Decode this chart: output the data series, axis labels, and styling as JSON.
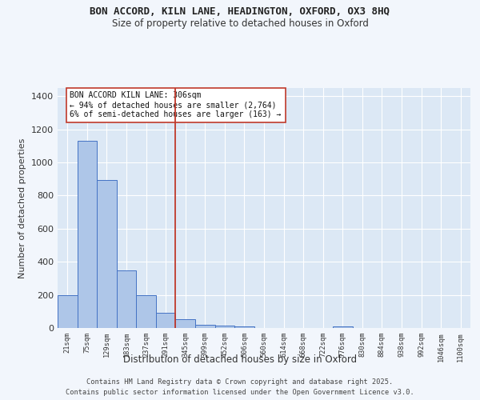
{
  "title1": "BON ACCORD, KILN LANE, HEADINGTON, OXFORD, OX3 8HQ",
  "title2": "Size of property relative to detached houses in Oxford",
  "xlabel": "Distribution of detached houses by size in Oxford",
  "ylabel": "Number of detached properties",
  "bin_labels": [
    "21sqm",
    "75sqm",
    "129sqm",
    "183sqm",
    "237sqm",
    "291sqm",
    "345sqm",
    "399sqm",
    "452sqm",
    "506sqm",
    "560sqm",
    "614sqm",
    "668sqm",
    "722sqm",
    "776sqm",
    "830sqm",
    "884sqm",
    "938sqm",
    "992sqm",
    "1046sqm",
    "1100sqm"
  ],
  "bar_values": [
    196,
    1130,
    893,
    350,
    196,
    90,
    53,
    20,
    15,
    10,
    0,
    0,
    0,
    0,
    10,
    0,
    0,
    0,
    0,
    0,
    0
  ],
  "bar_color": "#aec6e8",
  "bar_edge_color": "#4472c4",
  "vline_x": 5.5,
  "vline_color": "#c0392b",
  "annotation_title": "BON ACCORD KILN LANE: 306sqm",
  "annotation_line1": "← 94% of detached houses are smaller (2,764)",
  "annotation_line2": "6% of semi-detached houses are larger (163) →",
  "ylim": [
    0,
    1450
  ],
  "yticks": [
    0,
    200,
    400,
    600,
    800,
    1000,
    1200,
    1400
  ],
  "background_color": "#dce8f5",
  "fig_background_color": "#f2f6fc",
  "grid_color": "#ffffff",
  "footer1": "Contains HM Land Registry data © Crown copyright and database right 2025.",
  "footer2": "Contains public sector information licensed under the Open Government Licence v3.0."
}
